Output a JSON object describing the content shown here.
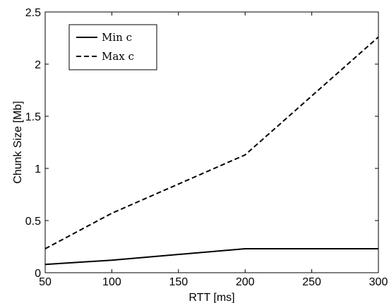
{
  "chart_data": {
    "type": "line",
    "xlabel": "RTT [ms]",
    "ylabel": "Chunk Size [Mb]",
    "xlim": [
      50,
      300
    ],
    "ylim": [
      0,
      2.5
    ],
    "xticks": [
      50,
      100,
      150,
      200,
      250,
      300
    ],
    "xtick_labels": [
      "50",
      "100",
      "150",
      "200",
      "250",
      "300"
    ],
    "yticks": [
      0,
      0.5,
      1,
      1.5,
      2,
      2.5
    ],
    "ytick_labels": [
      "0",
      "0.5",
      "1",
      "1.5",
      "2",
      "2.5"
    ],
    "grid": false,
    "legend_position": "top-left",
    "series": [
      {
        "name": "Min c",
        "style": "solid",
        "color": "#000000",
        "x": [
          50,
          100,
          200,
          300
        ],
        "y": [
          0.08,
          0.12,
          0.23,
          0.23
        ]
      },
      {
        "name": "Max c",
        "style": "dashed",
        "color": "#000000",
        "x": [
          50,
          100,
          200,
          300
        ],
        "y": [
          0.23,
          0.57,
          1.13,
          2.26
        ]
      }
    ]
  }
}
